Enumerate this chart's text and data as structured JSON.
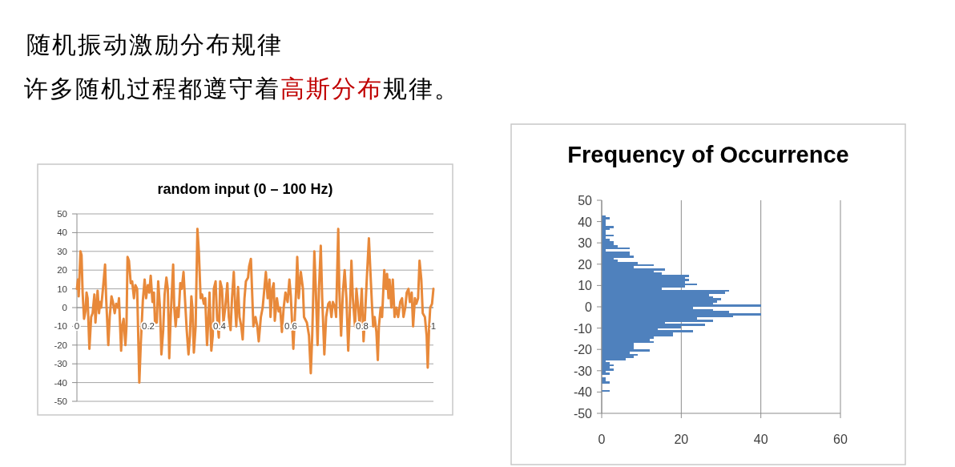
{
  "chart_data": [
    {
      "type": "other",
      "title": "随机振动激励分布规律",
      "subtitle": "许多随机过程都遵守着**高斯分布**规律。"
    },
    {
      "type": "line",
      "title": "random input (0 – 100 Hz)",
      "color": "#e8893a",
      "x": [
        0,
        0.003,
        0.005,
        0.01,
        0.013,
        0.016,
        0.02,
        0.024,
        0.027,
        0.03,
        0.035,
        0.04,
        0.044,
        0.049,
        0.052,
        0.058,
        0.062,
        0.065,
        0.068,
        0.073,
        0.079,
        0.082,
        0.088,
        0.092,
        0.097,
        0.101,
        0.106,
        0.11,
        0.115,
        0.118,
        0.124,
        0.127,
        0.131,
        0.136,
        0.139,
        0.142,
        0.146,
        0.151,
        0.155,
        0.16,
        0.164,
        0.169,
        0.175,
        0.179,
        0.185,
        0.19,
        0.194,
        0.199,
        0.203,
        0.207,
        0.212,
        0.216,
        0.219,
        0.224,
        0.228,
        0.233,
        0.237,
        0.242,
        0.246,
        0.251,
        0.255,
        0.259,
        0.263,
        0.27,
        0.273,
        0.277,
        0.281,
        0.285,
        0.29,
        0.294,
        0.299,
        0.303,
        0.308,
        0.313,
        0.317,
        0.321,
        0.324,
        0.328,
        0.333,
        0.338,
        0.342,
        0.347,
        0.351,
        0.356,
        0.36,
        0.365,
        0.369,
        0.372,
        0.377,
        0.381,
        0.384,
        0.389,
        0.393,
        0.398,
        0.402,
        0.407,
        0.411,
        0.416,
        0.422,
        0.426,
        0.431,
        0.435,
        0.44,
        0.444,
        0.447,
        0.452,
        0.456,
        0.461,
        0.465,
        0.47,
        0.474,
        0.48,
        0.483,
        0.488,
        0.495,
        0.501,
        0.506,
        0.51,
        0.516,
        0.521,
        0.53,
        0.535,
        0.54,
        0.543,
        0.548,
        0.552,
        0.555,
        0.561,
        0.566,
        0.57,
        0.575,
        0.58,
        0.585,
        0.591,
        0.596,
        0.6,
        0.607,
        0.615,
        0.618,
        0.622,
        0.628,
        0.634,
        0.637,
        0.645,
        0.651,
        0.656,
        0.66,
        0.666,
        0.67,
        0.675,
        0.679,
        0.684,
        0.688,
        0.694,
        0.699,
        0.705,
        0.709,
        0.714,
        0.718,
        0.724,
        0.727,
        0.733,
        0.736,
        0.741,
        0.746,
        0.751,
        0.756,
        0.761,
        0.765,
        0.77,
        0.774,
        0.78,
        0.784,
        0.789,
        0.793,
        0.799,
        0.804,
        0.808,
        0.813,
        0.819,
        0.823,
        0.828,
        0.831,
        0.835,
        0.84,
        0.844,
        0.847,
        0.852,
        0.856,
        0.862,
        0.867,
        0.87,
        0.874,
        0.877,
        0.882,
        0.886,
        0.891,
        0.896,
        0.901,
        0.907,
        0.912,
        0.916,
        0.921,
        0.925,
        0.93,
        0.934,
        0.939,
        0.943,
        0.948,
        0.952,
        0.957,
        0.961,
        0.966,
        0.97,
        0.976,
        0.981,
        0.984,
        0.988,
        0.991,
        0.996,
        1
      ],
      "values": [
        10,
        15,
        6,
        30,
        28,
        8,
        -6,
        -2,
        8,
        5,
        -22,
        -5,
        -3,
        7,
        -8,
        9,
        -3,
        3,
        0,
        10,
        23,
        5,
        -20,
        -5,
        6,
        3,
        -3,
        2,
        0,
        5,
        -23,
        -10,
        -6,
        -20,
        -10,
        27,
        25,
        13,
        14,
        5,
        12,
        10,
        -40,
        -20,
        4,
        15,
        5,
        12,
        8,
        17,
        3,
        8,
        -8,
        -8,
        14,
        0,
        -25,
        -12,
        7,
        16,
        10,
        -27,
        -5,
        23,
        0,
        -10,
        0,
        -5,
        13,
        10,
        19,
        5,
        -12,
        -25,
        -15,
        6,
        0,
        -24,
        -10,
        42,
        30,
        5,
        7,
        2,
        5,
        -20,
        -5,
        8,
        -23,
        -15,
        10,
        14,
        -5,
        -16,
        14,
        10,
        -8,
        0,
        13,
        -5,
        -12,
        5,
        19,
        0,
        -10,
        11,
        -5,
        -10,
        -17,
        5,
        14,
        16,
        22,
        26,
        -10,
        -5,
        -10,
        -18,
        -5,
        0,
        19,
        5,
        15,
        -5,
        10,
        13,
        -7,
        5,
        -2,
        0,
        -13,
        0,
        8,
        3,
        15,
        6,
        -22,
        10,
        27,
        5,
        19,
        10,
        -5,
        -8,
        -15,
        -35,
        -15,
        30,
        10,
        -20,
        10,
        33,
        5,
        -25,
        -5,
        2,
        3,
        -5,
        3,
        0,
        -5,
        42,
        10,
        -15,
        8,
        20,
        5,
        -23,
        -5,
        25,
        5,
        -10,
        10,
        0,
        -10,
        10,
        -18,
        -5,
        15,
        37,
        20,
        0,
        -10,
        -5,
        -13,
        -28,
        -10,
        0,
        -5,
        20,
        10,
        18,
        5,
        15,
        0,
        15,
        -5,
        0,
        -5,
        3,
        5,
        -5,
        0,
        8,
        10,
        3,
        8,
        -10,
        5,
        2,
        5,
        25,
        15,
        -3,
        -5,
        -15,
        -32,
        -10,
        0,
        2,
        10
      ],
      "xlim": [
        0,
        1
      ],
      "xticks": [
        0,
        0.2,
        0.4,
        0.6,
        0.8,
        1
      ],
      "ylim": [
        -50,
        50
      ],
      "yticks": [
        -50,
        -40,
        -30,
        -20,
        -10,
        0,
        10,
        20,
        30,
        40,
        50
      ],
      "grid": "y"
    },
    {
      "type": "histogram",
      "title": "Frequency of Occurrence",
      "orientation": "horizontal",
      "color": "#4f81bd",
      "bins": [
        -40,
        -39,
        -38,
        -37,
        -36,
        -35,
        -34,
        -33,
        -32,
        -31,
        -30,
        -29,
        -28,
        -27,
        -26,
        -25,
        -24,
        -23,
        -22,
        -21,
        -20,
        -19,
        -18,
        -17,
        -16,
        -15,
        -14,
        -13,
        -12,
        -11,
        -10,
        -9,
        -8,
        -7,
        -6,
        -5,
        -4,
        -3,
        -2,
        -1,
        0,
        1,
        2,
        3,
        4,
        5,
        6,
        7,
        8,
        9,
        10,
        11,
        12,
        13,
        14,
        15,
        16,
        17,
        18,
        19,
        20,
        21,
        22,
        23,
        24,
        25,
        26,
        27,
        28,
        29,
        30,
        31,
        32,
        33,
        34,
        35,
        36,
        37,
        38,
        39,
        40,
        41,
        42,
        43
      ],
      "values": [
        2,
        0,
        0,
        0,
        2,
        1,
        1,
        0,
        2,
        1,
        3,
        2,
        3,
        2,
        1,
        6,
        8,
        9,
        7,
        12,
        8,
        8,
        8,
        13,
        12,
        13,
        18,
        18,
        23,
        14,
        20,
        26,
        16,
        28,
        24,
        33,
        40,
        32,
        28,
        23,
        40,
        28,
        29,
        30,
        28,
        27,
        31,
        32,
        15,
        21,
        24,
        21,
        22,
        21,
        22,
        15,
        13,
        16,
        8,
        13,
        9,
        4,
        3,
        8,
        7,
        7,
        1,
        7,
        4,
        3,
        3,
        2,
        1,
        3,
        1,
        1,
        2,
        3,
        1,
        1,
        1,
        2,
        1
      ],
      "xlim": [
        0,
        60
      ],
      "xticks": [
        0,
        20,
        40,
        60
      ],
      "ylim": [
        -50,
        50
      ],
      "yticks": [
        -50,
        -40,
        -30,
        -20,
        -10,
        0,
        10,
        20,
        30,
        40,
        50
      ],
      "grid": "x"
    }
  ]
}
